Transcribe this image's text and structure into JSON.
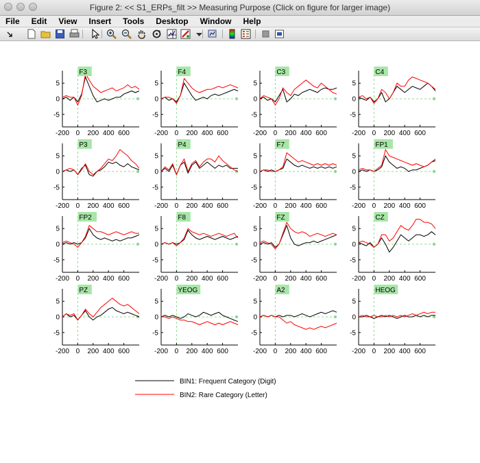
{
  "window": {
    "title": "Figure 2: << S1_ERPs_filt >>  Measuring Purpose (Click on figure for larger image)"
  },
  "menu": [
    "File",
    "Edit",
    "View",
    "Insert",
    "Tools",
    "Desktop",
    "Window",
    "Help"
  ],
  "toolbar": [
    {
      "name": "arrow-dock-icon",
      "x": 7
    },
    {
      "name": "new-figure-icon",
      "x": 38
    },
    {
      "name": "open-file-icon",
      "x": 59
    },
    {
      "name": "save-icon",
      "x": 80
    },
    {
      "name": "print-icon",
      "x": 101
    },
    {
      "name": "pointer-icon",
      "x": 131
    },
    {
      "name": "zoom-in-icon",
      "x": 155
    },
    {
      "name": "zoom-out-icon",
      "x": 177
    },
    {
      "name": "pan-hand-icon",
      "x": 199
    },
    {
      "name": "rotate-3d-icon",
      "x": 221
    },
    {
      "name": "data-cursor-icon",
      "x": 243
    },
    {
      "name": "brush-icon",
      "x": 263
    },
    {
      "name": "brush-dropdown-icon",
      "x": 283
    },
    {
      "name": "link-plot-icon",
      "x": 302
    },
    {
      "name": "colorbar-icon",
      "x": 331
    },
    {
      "name": "legend-icon",
      "x": 351
    },
    {
      "name": "hide-plot-tools-icon",
      "x": 380
    },
    {
      "name": "show-plot-tools-icon",
      "x": 400
    }
  ],
  "colors": {
    "bin1": "#000000",
    "bin2": "#ff0000",
    "label_bg": "#a8e6a8",
    "zero_line": "#8fd88f"
  },
  "chart_data": {
    "type": "line",
    "xlim": [
      -200,
      800
    ],
    "ylim": [
      -9,
      9
    ],
    "x_ticks": [
      -200,
      0,
      200,
      400,
      600
    ],
    "y_ticks": [
      5,
      0,
      -5
    ],
    "x_tick_labels": [
      "-200",
      "0",
      "200",
      "400",
      "600"
    ],
    "y_tick_labels": [
      "5",
      "0",
      "-5"
    ],
    "legend": [
      {
        "label": "BIN1: Frequent Category (Digit)",
        "color": "#000000"
      },
      {
        "label": "BIN2: Rare Category (Letter)",
        "color": "#ff0000"
      }
    ],
    "panels": [
      {
        "channel": "F3",
        "bin1": [
          0,
          0.5,
          -0.5,
          0.5,
          -1,
          1.5,
          7,
          4,
          1,
          -1,
          -0.5,
          0,
          -0.5,
          0,
          0.5,
          0.5,
          1.5,
          2,
          2.5,
          2,
          2.5
        ],
        "bin2": [
          0.5,
          1,
          0.5,
          0.5,
          -2,
          1,
          8,
          6,
          4,
          3,
          2,
          2.5,
          3,
          3.5,
          2.5,
          3,
          3.5,
          4.5,
          3.5,
          4,
          3
        ]
      },
      {
        "channel": "F4",
        "bin1": [
          0,
          0.5,
          -0.5,
          0,
          -1,
          1,
          5,
          3,
          1,
          -0.5,
          0,
          0.5,
          0,
          1,
          1.5,
          1,
          1.5,
          2,
          2.5,
          3,
          2.5
        ],
        "bin2": [
          0,
          0.5,
          0.5,
          0,
          -1.5,
          1,
          6.5,
          5,
          3.5,
          2.5,
          2,
          2.5,
          3,
          3,
          3.5,
          4,
          3.5,
          4,
          4.5,
          4,
          3.5
        ]
      },
      {
        "channel": "C3",
        "bin1": [
          0,
          0.5,
          -0.5,
          0,
          -1,
          1,
          3,
          -1,
          0,
          1.5,
          1,
          2,
          2.5,
          3,
          2.5,
          2,
          3,
          3.5,
          3,
          3,
          3.5
        ],
        "bin2": [
          0,
          1,
          0.5,
          0,
          -2,
          0,
          3.5,
          2,
          1,
          3,
          4,
          5,
          6,
          5,
          4,
          3.5,
          5,
          4,
          3,
          2,
          1.5
        ]
      },
      {
        "channel": "C4",
        "bin1": [
          0.5,
          0,
          -0.5,
          0.5,
          -1,
          0,
          2,
          -1,
          0,
          2,
          4,
          3,
          2,
          3,
          4,
          3.5,
          3,
          4,
          5,
          4,
          2.5
        ],
        "bin2": [
          0.5,
          1,
          0,
          0.5,
          -1.5,
          0,
          3,
          2,
          0,
          2,
          5,
          4,
          4,
          6,
          7,
          6.5,
          6,
          5.5,
          5,
          4,
          3
        ]
      },
      {
        "channel": "P3",
        "bin1": [
          0,
          0.5,
          0,
          0.5,
          -1,
          1,
          2,
          -1,
          -1.5,
          0,
          0.5,
          1.5,
          3,
          2.5,
          3,
          2,
          1.5,
          2.5,
          1.5,
          1,
          0.5
        ],
        "bin2": [
          0,
          0.5,
          1,
          0.5,
          -1,
          0.5,
          2.5,
          0,
          -1,
          0,
          1,
          2.5,
          4,
          3.5,
          5,
          7,
          6,
          5,
          3.5,
          2.5,
          1
        ]
      },
      {
        "channel": "P4",
        "bin1": [
          0,
          1,
          0,
          2,
          -1,
          2,
          3,
          -0.5,
          2,
          3,
          1,
          2,
          3,
          2,
          1,
          2,
          1.5,
          2,
          1,
          1,
          1
        ],
        "bin2": [
          0,
          1.5,
          0.5,
          2.5,
          -1,
          2,
          4,
          0,
          2.5,
          3.5,
          1.5,
          3,
          4,
          4,
          3,
          5,
          3.5,
          2.5,
          1.5,
          0.5,
          0
        ]
      },
      {
        "channel": "F7",
        "bin1": [
          0,
          0.5,
          0,
          0.5,
          0,
          0.5,
          1,
          4,
          3,
          2,
          1.5,
          2,
          1.5,
          1,
          1.5,
          1,
          1.5,
          1,
          1.5,
          1,
          1.5
        ],
        "bin2": [
          0,
          0.5,
          0.5,
          0,
          0,
          0.5,
          1.5,
          6,
          5,
          4,
          3,
          3.5,
          3,
          2.5,
          2,
          2.5,
          2,
          2.5,
          2,
          2.5,
          2
        ]
      },
      {
        "channel": "FP1",
        "bin1": [
          0,
          0.5,
          0,
          0.5,
          0,
          0.5,
          1.5,
          5,
          3,
          2,
          1,
          1.5,
          1,
          0,
          0.5,
          0.5,
          1,
          1.5,
          2,
          3,
          3.5
        ],
        "bin2": [
          0.5,
          1,
          0.5,
          0.5,
          0,
          1,
          2,
          7,
          5,
          4.5,
          4,
          3.5,
          3,
          2.5,
          2,
          2.5,
          2,
          1.5,
          2,
          3,
          4
        ]
      },
      {
        "channel": "FP2",
        "bin1": [
          0,
          0.5,
          0,
          0.5,
          0,
          0.5,
          2,
          5,
          3,
          2,
          1.5,
          2,
          1.5,
          1,
          1.5,
          1,
          1.5,
          2,
          2,
          2.5,
          3
        ],
        "bin2": [
          0.5,
          1,
          0.5,
          0,
          -1,
          0.5,
          2.5,
          6,
          5,
          4,
          4,
          3.5,
          3,
          3.5,
          4,
          3.5,
          3,
          3.5,
          4,
          3.5,
          3.5
        ]
      },
      {
        "channel": "F8",
        "bin1": [
          0,
          0.5,
          0,
          0.5,
          0,
          0.5,
          1.5,
          4.5,
          3,
          2,
          1.5,
          2,
          2.5,
          2,
          1.5,
          2,
          2.5,
          2,
          1.5,
          2,
          2.5
        ],
        "bin2": [
          0,
          0.5,
          0,
          0.5,
          -0.5,
          0.5,
          2,
          5,
          4,
          3.5,
          3,
          3.5,
          3,
          2.5,
          3,
          3.5,
          3,
          2.5,
          3,
          3.5,
          2
        ]
      },
      {
        "channel": "FZ",
        "bin1": [
          0,
          0.5,
          0,
          0.5,
          -1,
          0,
          3,
          6,
          2,
          0,
          -0.5,
          0,
          0.5,
          0.5,
          1,
          0.5,
          1,
          1.5,
          2,
          2.5,
          3
        ],
        "bin2": [
          0.5,
          1,
          0.5,
          0,
          -1.5,
          0,
          3.5,
          7,
          5,
          4,
          3.5,
          4,
          3.5,
          2.5,
          3,
          3.5,
          3,
          2.5,
          3,
          3.5,
          3
        ]
      },
      {
        "channel": "CZ",
        "bin1": [
          0.5,
          0,
          -0.5,
          0.5,
          -1,
          0,
          2,
          0,
          -2.5,
          -1,
          1,
          3,
          2,
          1,
          2,
          3,
          3,
          2.5,
          3,
          4,
          3
        ],
        "bin2": [
          0.5,
          1,
          0.5,
          0,
          -1,
          0,
          3,
          3,
          1,
          2,
          4,
          6,
          5,
          4.5,
          6,
          8,
          8,
          7,
          7,
          6.5,
          5
        ]
      },
      {
        "channel": "PZ",
        "bin1": [
          0,
          1,
          0,
          0.5,
          -1,
          0.5,
          2,
          0,
          -1,
          0,
          0.5,
          1.5,
          2.5,
          3,
          2,
          1.5,
          1,
          1.5,
          1,
          0.5,
          0
        ],
        "bin2": [
          0,
          1,
          0.5,
          1,
          -1,
          0.5,
          2.5,
          1,
          0,
          1.5,
          3,
          4,
          5,
          6,
          5,
          4,
          3.5,
          4,
          3,
          2,
          1
        ]
      },
      {
        "channel": "YEOG",
        "bin1": [
          0,
          0.5,
          0,
          0.5,
          0,
          -0.5,
          0,
          1,
          0.5,
          0,
          0.5,
          1.5,
          1,
          0.5,
          1,
          1.5,
          0.5,
          0,
          -0.5,
          -1,
          -1.5
        ],
        "bin2": [
          0,
          0,
          -0.5,
          0,
          -0.5,
          -1,
          -1,
          -1.5,
          -1.5,
          -2,
          -2.5,
          -2,
          -1.5,
          -2,
          -2.5,
          -2,
          -2.5,
          -2,
          -1.5,
          -2,
          -2.5
        ]
      },
      {
        "channel": "A2",
        "bin1": [
          0,
          0.5,
          0,
          0.5,
          0,
          0.5,
          0,
          0.5,
          0.5,
          0,
          0.5,
          1,
          0.5,
          0,
          0.5,
          1,
          1.5,
          1,
          1.5,
          2,
          1.5
        ],
        "bin2": [
          0,
          0.5,
          0,
          0.5,
          0,
          0,
          -1,
          -2,
          -1.5,
          -2.5,
          -3,
          -3.5,
          -4,
          -3.5,
          -4,
          -3.5,
          -3,
          -3.5,
          -3,
          -2.5,
          -2
        ]
      },
      {
        "channel": "HEOG",
        "bin1": [
          0,
          0,
          0.5,
          0,
          -0.5,
          0,
          0.5,
          0,
          0.5,
          0,
          -0.5,
          0,
          0.5,
          0,
          0,
          0.5,
          0,
          0.5,
          0,
          0.5,
          0.5
        ],
        "bin2": [
          0,
          0.5,
          0,
          0,
          0.5,
          0,
          0,
          0.5,
          0,
          0.5,
          0,
          0.5,
          0,
          0.5,
          1,
          0.5,
          1,
          1.5,
          1,
          1.5,
          1.5
        ]
      }
    ]
  }
}
